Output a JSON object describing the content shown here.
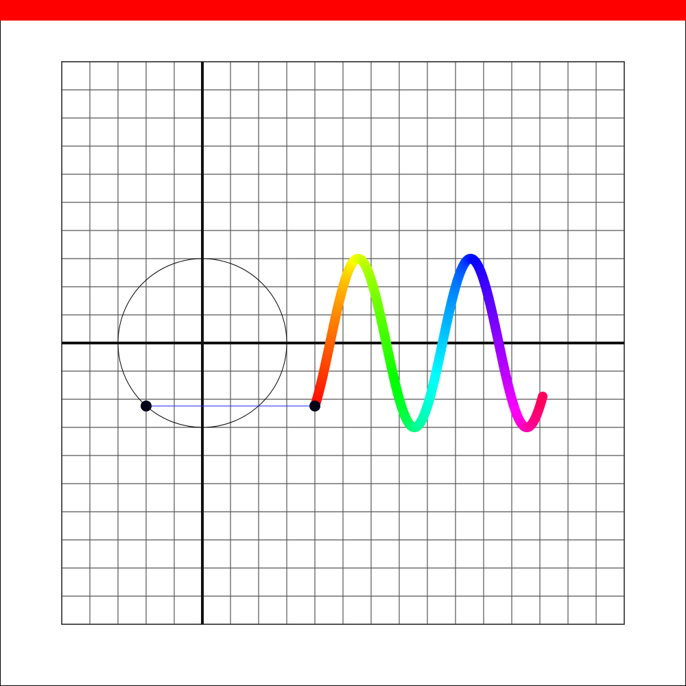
{
  "top_bar": {
    "color": "#ff0000"
  },
  "grid": {
    "x_range": [
      -5,
      15
    ],
    "y_range": [
      -10,
      10
    ],
    "step": 1,
    "line_color": "#555555",
    "axis_color": "#111111"
  },
  "unit_circle": {
    "center": [
      0,
      0
    ],
    "radius": 3,
    "color": "#000000"
  },
  "rotating_point": {
    "x": -2,
    "y": -2.24,
    "color": "#000016"
  },
  "projection_line": {
    "color": "#2222ff"
  },
  "wave": {
    "x_start": 4,
    "x_end": 12.1,
    "amplitude": 3,
    "period": 4,
    "phase_start_y": -2.24,
    "stroke": "rainbow"
  },
  "wave_point": {
    "x": 4,
    "y": -2.24,
    "color": "#000016"
  }
}
